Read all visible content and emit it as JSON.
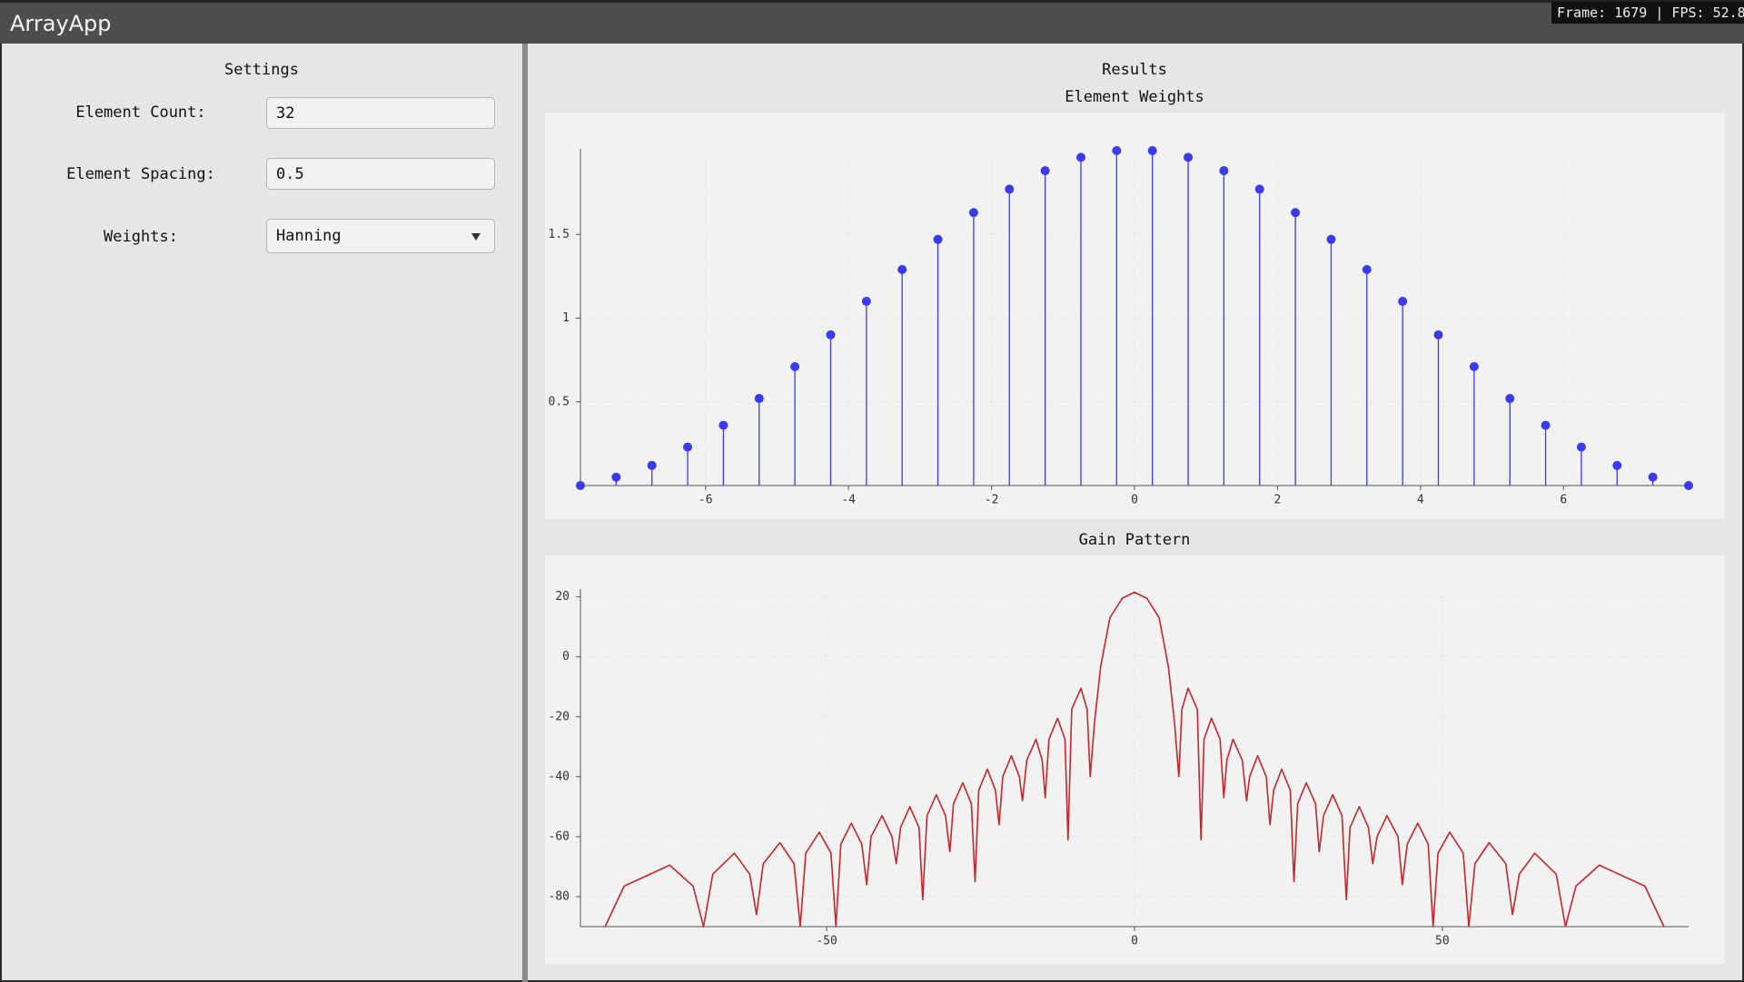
{
  "window": {
    "title": "ArrayApp",
    "status": "Frame: 1679 | FPS: 52.8"
  },
  "settings": {
    "title": "Settings",
    "fields": [
      {
        "label": "Element Count:",
        "value": "32"
      },
      {
        "label": "Element Spacing:",
        "value": "0.5"
      },
      {
        "label": "Weights:",
        "value": "Hanning"
      }
    ]
  },
  "results": {
    "title": "Results"
  },
  "chart_data": [
    {
      "type": "stem",
      "title": "Element Weights",
      "x": [
        -7.75,
        -7.25,
        -6.75,
        -6.25,
        -5.75,
        -5.25,
        -4.75,
        -4.25,
        -3.75,
        -3.25,
        -2.75,
        -2.25,
        -1.75,
        -1.25,
        -0.75,
        -0.25,
        0.25,
        0.75,
        1.25,
        1.75,
        2.25,
        2.75,
        3.25,
        3.75,
        4.25,
        4.75,
        5.25,
        5.75,
        6.25,
        6.75,
        7.25,
        7.75
      ],
      "values": [
        0,
        0.05,
        0.12,
        0.23,
        0.36,
        0.52,
        0.71,
        0.9,
        1.1,
        1.29,
        1.47,
        1.63,
        1.77,
        1.88,
        1.96,
        2.0,
        2.0,
        1.96,
        1.88,
        1.77,
        1.63,
        1.47,
        1.29,
        1.1,
        0.9,
        0.71,
        0.52,
        0.36,
        0.23,
        0.12,
        0.05,
        0
      ],
      "color": "#3a3af0",
      "xlim": [
        -7.75,
        7.75
      ],
      "xticks": [
        -6,
        -4,
        -2,
        0,
        2,
        4,
        6
      ],
      "ylim": [
        0,
        2
      ],
      "yticks": [
        0.5,
        1,
        1.5
      ],
      "grid": true
    },
    {
      "type": "line",
      "title": "Gain Pattern",
      "x": [
        -86,
        -82.9,
        -75.5,
        -71.7,
        -70.0,
        -68.5,
        -65.0,
        -62.5,
        -61.4,
        -60.3,
        -57.6,
        -55.3,
        -54.3,
        -53.4,
        -51.2,
        -49.3,
        -48.5,
        -47.7,
        -46.0,
        -44.3,
        -43.5,
        -42.8,
        -41.0,
        -39.4,
        -38.7,
        -38.0,
        -36.5,
        -35.0,
        -34.4,
        -33.7,
        -32.2,
        -30.7,
        -30.0,
        -29.4,
        -27.9,
        -26.5,
        -25.9,
        -25.3,
        -23.9,
        -22.6,
        -22.0,
        -21.4,
        -20.0,
        -18.7,
        -18.2,
        -17.5,
        -16.0,
        -15.0,
        -14.5,
        -13.9,
        -12.5,
        -11.3,
        -10.8,
        -10.2,
        -8.7,
        -7.7,
        -7.2,
        -6.5,
        -5.5,
        -4,
        -2,
        0,
        2,
        4,
        5.5,
        6.5,
        7.2,
        7.7,
        8.7,
        10.2,
        10.8,
        11.3,
        12.5,
        13.9,
        14.5,
        15.0,
        16.0,
        17.5,
        18.2,
        18.7,
        20.0,
        21.4,
        22.0,
        22.6,
        23.9,
        25.3,
        25.9,
        26.5,
        27.9,
        29.4,
        30.0,
        30.7,
        32.2,
        33.7,
        34.4,
        35.0,
        36.5,
        38.0,
        38.7,
        39.4,
        41.0,
        42.8,
        43.5,
        44.3,
        46.0,
        47.7,
        48.5,
        49.3,
        51.2,
        53.4,
        54.3,
        55.3,
        57.6,
        60.3,
        61.4,
        62.5,
        65.0,
        68.5,
        70.0,
        71.7,
        75.5,
        82.9,
        86
      ],
      "values": [
        -90,
        -76.5,
        -69.5,
        -76.5,
        -90,
        -72.5,
        -65.5,
        -72.5,
        -86,
        -69,
        -62,
        -69,
        -90,
        -65.5,
        -58.5,
        -65.5,
        -90,
        -62.5,
        -55.5,
        -62.5,
        -76,
        -60,
        -53,
        -60,
        -69,
        -57,
        -50,
        -57,
        -81,
        -53,
        -46,
        -53,
        -65,
        -49,
        -42,
        -49,
        -75,
        -44.5,
        -37.5,
        -44.5,
        -56,
        -40,
        -33,
        -40,
        -48,
        -34.5,
        -27.5,
        -34.5,
        -47,
        -27.5,
        -20.5,
        -27.5,
        -61,
        -17.5,
        -10.5,
        -17.5,
        -40,
        -22,
        -3.3,
        13,
        19.5,
        21.5,
        19.5,
        13,
        -3.3,
        -22,
        -40,
        -17.5,
        -10.5,
        -17.5,
        -61,
        -27.5,
        -20.5,
        -27.5,
        -47,
        -34.5,
        -27.5,
        -34.5,
        -48,
        -40,
        -33,
        -40,
        -56,
        -44.5,
        -37.5,
        -44.5,
        -75,
        -49,
        -42,
        -49,
        -65,
        -53,
        -46,
        -53,
        -81,
        -57,
        -50,
        -57,
        -69,
        -60,
        -53,
        -60,
        -76,
        -62.5,
        -55.5,
        -62.5,
        -90,
        -65.5,
        -58.5,
        -65.5,
        -90,
        -69,
        -62,
        -69,
        -86,
        -72.5,
        -65.5,
        -72.5,
        -90,
        -76.5,
        -69.5,
        -76.5,
        -90
      ],
      "color": "#c8262b",
      "xlim": [
        -90,
        90
      ],
      "xticks": [
        -50,
        0,
        50
      ],
      "ylim": [
        -90,
        22
      ],
      "yticks": [
        -80,
        -60,
        -40,
        -20,
        0,
        20
      ],
      "grid": true
    }
  ]
}
